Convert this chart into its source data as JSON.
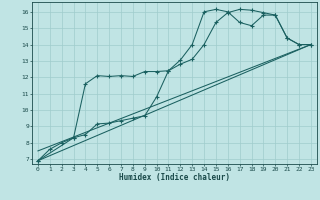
{
  "xlabel": "Humidex (Indice chaleur)",
  "bg_color": "#c0e4e4",
  "grid_color": "#a0cccc",
  "line_color": "#1a6060",
  "xlim_min": -0.5,
  "xlim_max": 23.5,
  "ylim_min": 6.7,
  "ylim_max": 16.6,
  "yticks": [
    7,
    8,
    9,
    10,
    11,
    12,
    13,
    14,
    15,
    16
  ],
  "xticks": [
    0,
    1,
    2,
    3,
    4,
    5,
    6,
    7,
    8,
    9,
    10,
    11,
    12,
    13,
    14,
    15,
    16,
    17,
    18,
    19,
    20,
    21,
    22,
    23
  ],
  "curve1_x": [
    0,
    1,
    2,
    3,
    4,
    5,
    6,
    7,
    8,
    9,
    10,
    11,
    12,
    13,
    14,
    15,
    16,
    17,
    18,
    19,
    20,
    21,
    22,
    23
  ],
  "curve1_y": [
    6.9,
    7.6,
    8.0,
    8.3,
    8.5,
    9.15,
    9.2,
    9.35,
    9.5,
    9.65,
    10.8,
    12.4,
    12.8,
    13.1,
    14.0,
    15.35,
    15.95,
    16.15,
    16.1,
    15.95,
    15.8,
    14.4,
    14.0,
    14.0
  ],
  "curve2_x": [
    0,
    3,
    4,
    5,
    6,
    7,
    8,
    9,
    10,
    11,
    12,
    13,
    14,
    15,
    16,
    17,
    18,
    19,
    20,
    21,
    22,
    23
  ],
  "curve2_y": [
    6.9,
    8.3,
    11.6,
    12.1,
    12.05,
    12.1,
    12.05,
    12.35,
    12.35,
    12.4,
    13.05,
    14.0,
    16.0,
    16.15,
    16.0,
    15.35,
    15.15,
    15.8,
    15.8,
    14.4,
    14.0,
    14.0
  ],
  "line3_x": [
    0,
    23
  ],
  "line3_y": [
    6.9,
    14.0
  ],
  "line4_x": [
    0,
    23
  ],
  "line4_y": [
    7.5,
    14.0
  ]
}
